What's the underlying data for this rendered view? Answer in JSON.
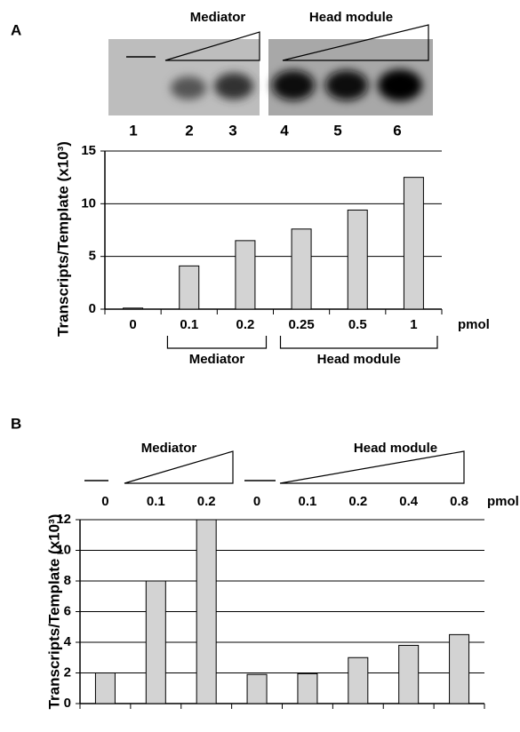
{
  "chart_data": [
    {
      "type": "bar",
      "panel": "A",
      "lanes": [
        "1",
        "2",
        "3",
        "4",
        "5",
        "6"
      ],
      "gel_groups": [
        "Mediator",
        "Head module"
      ],
      "ylabel": "Transcripts/Template (x10³)",
      "xunit": "pmol",
      "categories": [
        "0",
        "0.1",
        "0.2",
        "0.25",
        "0.5",
        "1"
      ],
      "values": [
        0.1,
        4.1,
        6.5,
        7.6,
        9.4,
        12.5
      ],
      "groups": [
        "Mediator",
        "Head module"
      ],
      "color": "#d3d3d3",
      "ylim": [
        0,
        15
      ],
      "yticks": [
        0,
        5,
        10,
        15
      ],
      "grid": true
    },
    {
      "type": "bar",
      "panel": "B",
      "groups": [
        "Mediator",
        "Head module"
      ],
      "ylabel": "Transcripts/Template (x10³)",
      "xunit": "pmol",
      "categories": [
        "0",
        "0.1",
        "0.2",
        "0",
        "0.1",
        "0.2",
        "0.4",
        "0.8"
      ],
      "values": [
        2,
        8,
        12,
        1.9,
        1.95,
        3,
        3.8,
        4.5
      ],
      "color": "#d3d3d3",
      "ylim": [
        0,
        12
      ],
      "yticks": [
        0,
        2,
        4,
        6,
        8,
        10,
        12
      ],
      "grid": true
    }
  ]
}
